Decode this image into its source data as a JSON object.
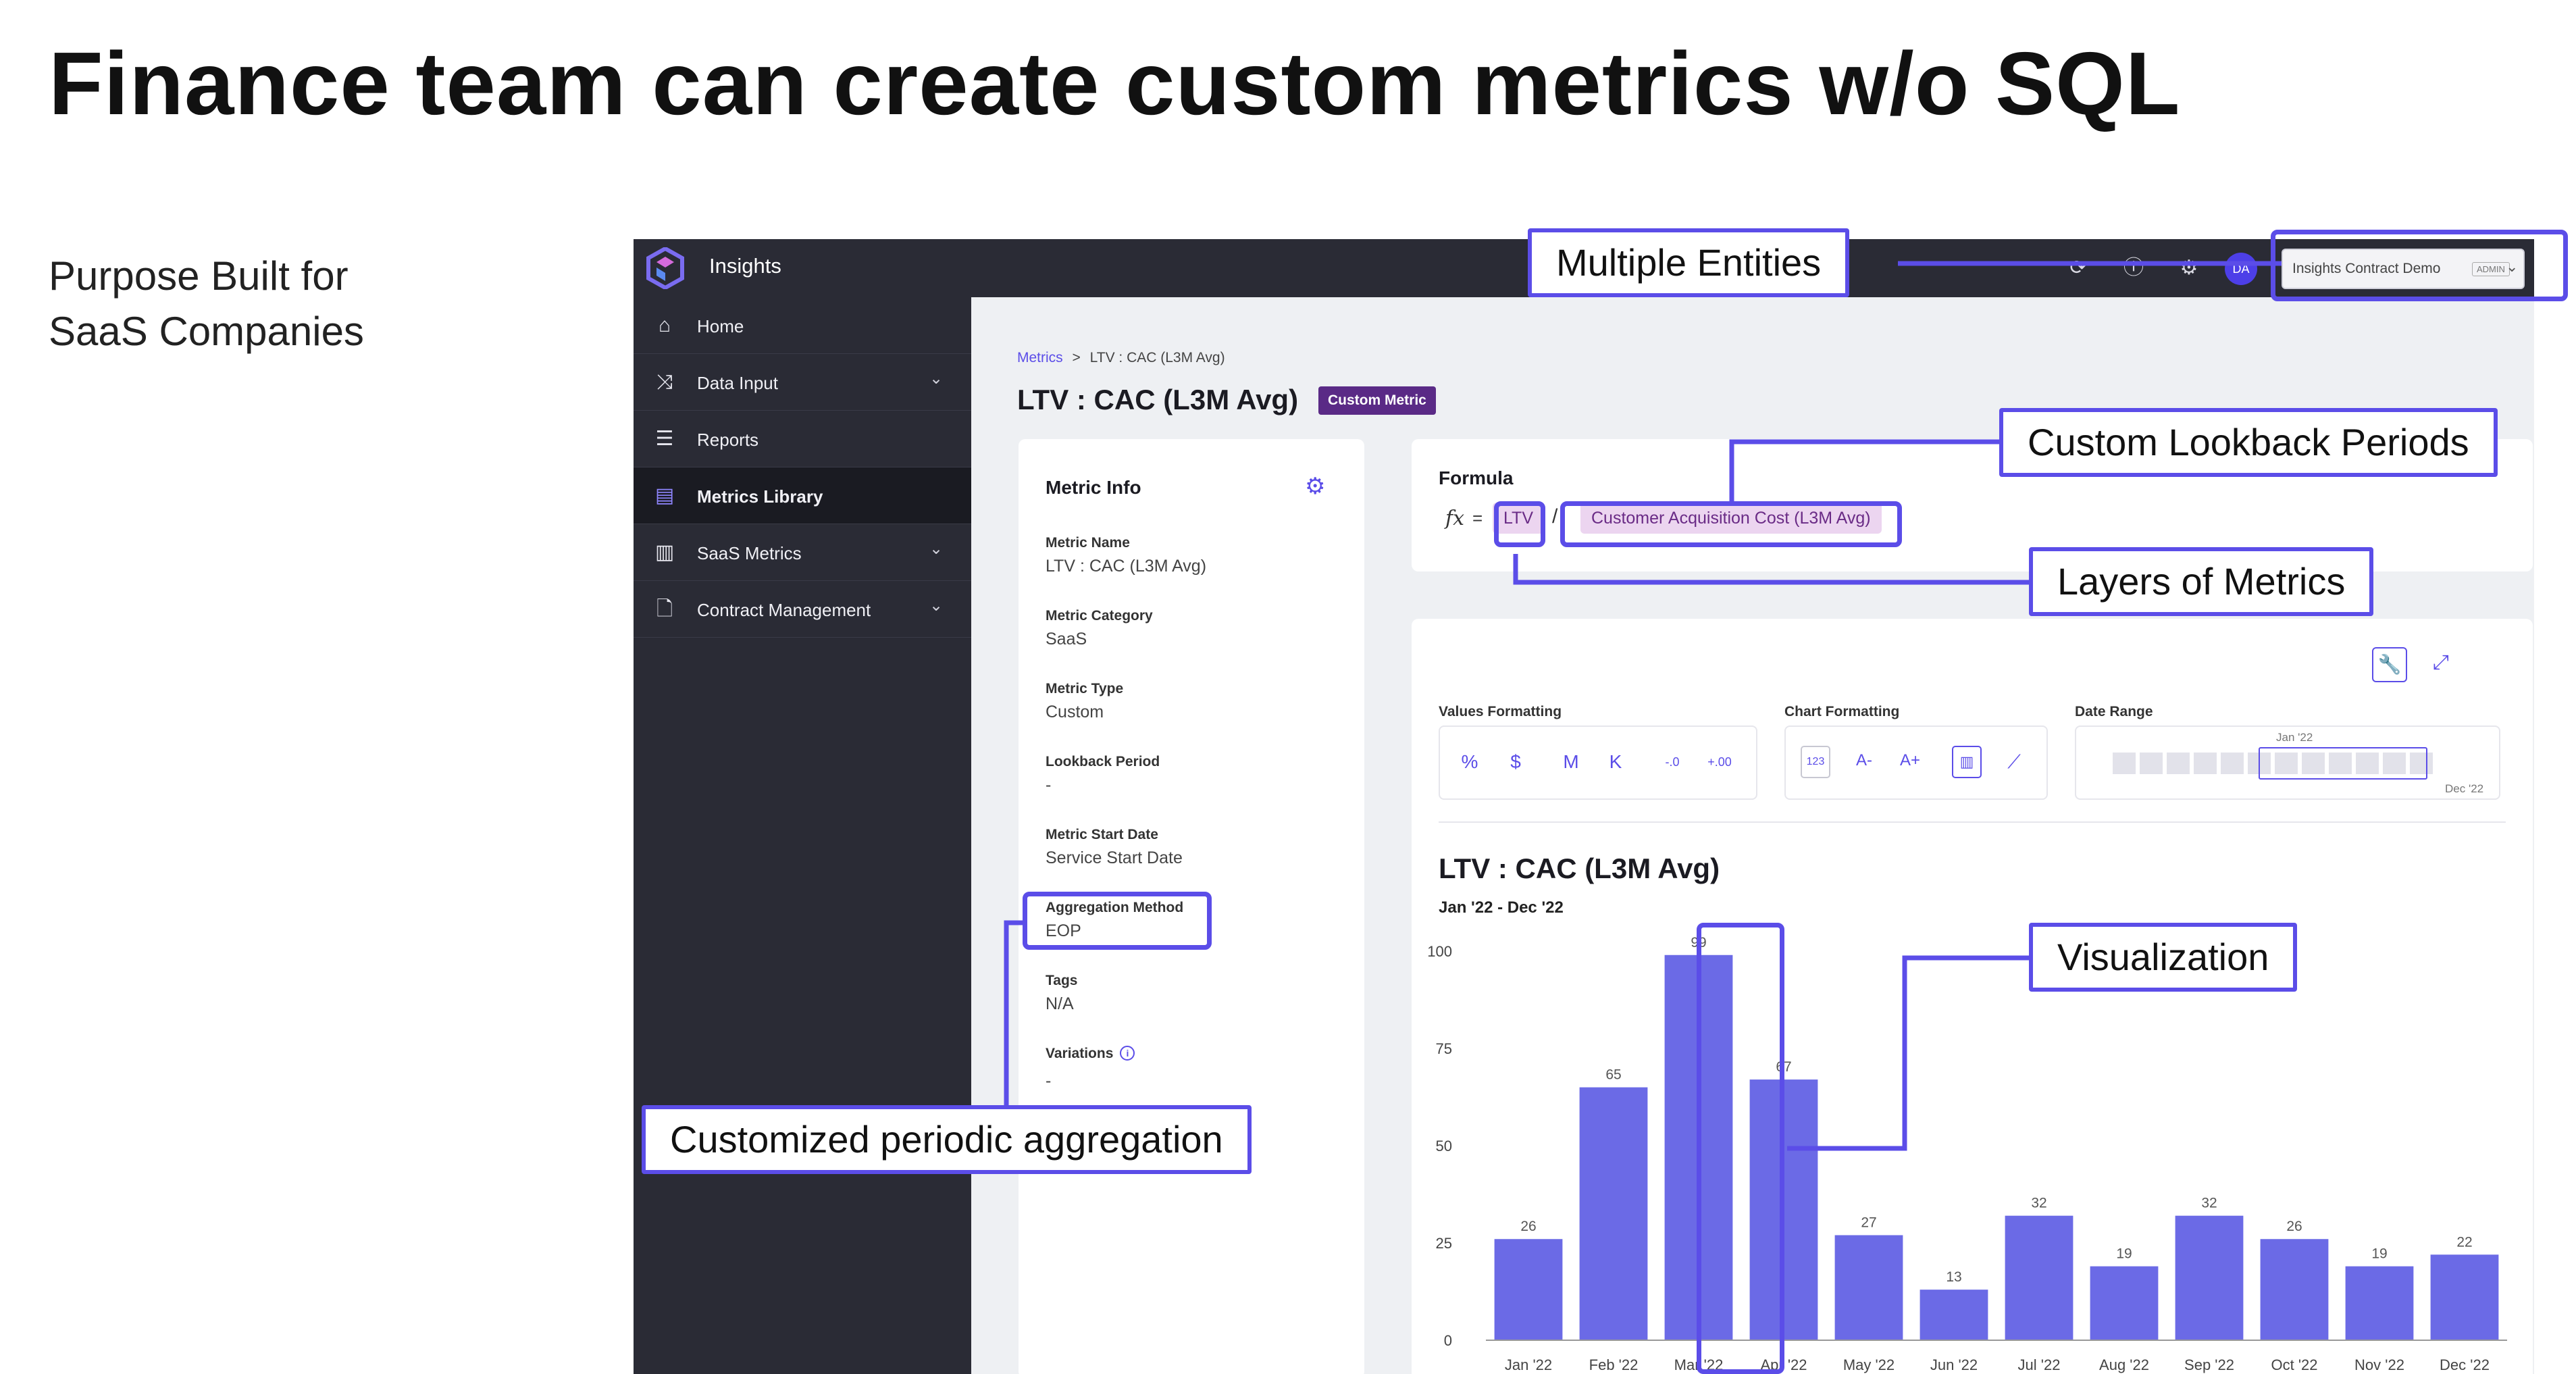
{
  "slide": {
    "title": "Finance team can create custom metrics w/o SQL",
    "subtitle": "Purpose Built for\nSaaS Companies"
  },
  "topbar": {
    "app_name": "Insights",
    "avatar_initials": "DA",
    "entity_selector": {
      "value": "Insights Contract Demo",
      "badge": "ADMIN"
    },
    "icons": [
      "refresh-icon",
      "help-icon",
      "gear-icon"
    ]
  },
  "sidebar": {
    "items": [
      {
        "label": "Home",
        "icon": "home-icon",
        "expandable": false,
        "active": false
      },
      {
        "label": "Data Input",
        "icon": "data-input-icon",
        "expandable": true,
        "active": false
      },
      {
        "label": "Reports",
        "icon": "reports-icon",
        "expandable": false,
        "active": false
      },
      {
        "label": "Metrics Library",
        "icon": "metrics-library-icon",
        "expandable": false,
        "active": true
      },
      {
        "label": "SaaS Metrics",
        "icon": "saas-metrics-icon",
        "expandable": true,
        "active": false
      },
      {
        "label": "Contract Management",
        "icon": "contract-icon",
        "expandable": true,
        "active": false
      }
    ]
  },
  "breadcrumb": {
    "root": "Metrics",
    "separator": ">",
    "current": "LTV : CAC (L3M Avg)"
  },
  "page": {
    "title": "LTV : CAC (L3M Avg)",
    "badge": "Custom Metric"
  },
  "metric_info": {
    "title": "Metric Info",
    "fields": [
      {
        "label": "Metric Name",
        "value": "LTV : CAC (L3M Avg)"
      },
      {
        "label": "Metric Category",
        "value": "SaaS"
      },
      {
        "label": "Metric Type",
        "value": "Custom"
      },
      {
        "label": "Lookback Period",
        "value": "-"
      },
      {
        "label": "Metric Start Date",
        "value": "Service Start Date"
      },
      {
        "label": "Aggregation Method",
        "value": "EOP"
      },
      {
        "label": "Tags",
        "value": "N/A"
      },
      {
        "label": "Variations",
        "value": "-"
      }
    ]
  },
  "formula": {
    "label": "Formula",
    "fx": "fx",
    "equals": "=",
    "operand_1": "LTV",
    "operator": "/",
    "operand_2": "Customer Acquisition Cost (L3M Avg)"
  },
  "toolbar": {
    "values_formatting": {
      "label": "Values Formatting",
      "options": [
        "%",
        "$",
        "M",
        "K",
        "-.0",
        "+.00"
      ]
    },
    "chart_formatting": {
      "label": "Chart Formatting",
      "options": [
        "123",
        "A-",
        "A+",
        "bar",
        "line"
      ]
    },
    "date_range": {
      "label": "Date Range",
      "start": "Jan '22",
      "end": "Dec '22"
    }
  },
  "chart_data": {
    "type": "bar",
    "title": "LTV : CAC (L3M Avg)",
    "subtitle": "Jan '22 - Dec '22",
    "categories": [
      "Jan '22",
      "Feb '22",
      "Mar '22",
      "Apr '22",
      "May '22",
      "Jun '22",
      "Jul '22",
      "Aug '22",
      "Sep '22",
      "Oct '22",
      "Nov '22",
      "Dec '22"
    ],
    "values": [
      26,
      65,
      99,
      67,
      27,
      13,
      32,
      19,
      32,
      26,
      19,
      22
    ],
    "ylim": [
      0,
      100
    ],
    "yticks": [
      0,
      25,
      50,
      75,
      100
    ],
    "bar_color": "#6b6ae6",
    "grid": false,
    "data_labels": true
  },
  "annotations": {
    "multiple_entities": "Multiple Entities",
    "custom_lookback": "Custom Lookback Periods",
    "layers_of_metrics": "Layers of Metrics",
    "visualization": "Visualization",
    "customized_aggregation": "Customized periodic aggregation",
    "accent_color": "#5b4de8"
  }
}
